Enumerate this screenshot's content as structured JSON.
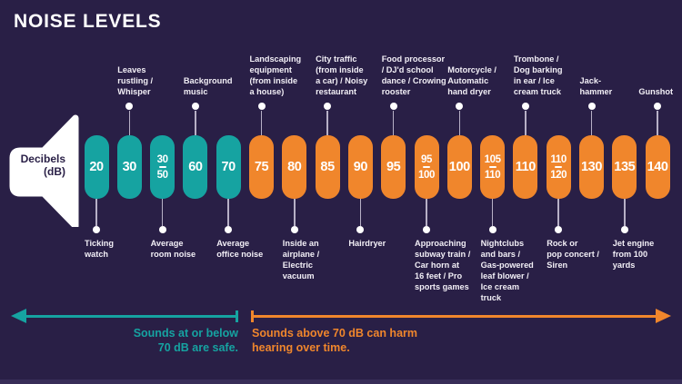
{
  "title": "NOISE LEVELS",
  "speaker": {
    "label": "Decibels\n(dB)"
  },
  "colors": {
    "background": "#291f46",
    "safe": "#16a3a1",
    "harm": "#f0862c",
    "text": "#ffffff",
    "connector": "#b7b0c6"
  },
  "pills": [
    {
      "values": [
        "20"
      ],
      "zone": "safe",
      "label_below": "Ticking\nwatch"
    },
    {
      "values": [
        "30"
      ],
      "zone": "safe",
      "label_above": "Leaves\nrustling /\nWhisper"
    },
    {
      "values": [
        "30",
        "50"
      ],
      "zone": "safe",
      "label_below": "Average\nroom noise"
    },
    {
      "values": [
        "60"
      ],
      "zone": "safe",
      "label_above": "Background\nmusic"
    },
    {
      "values": [
        "70"
      ],
      "zone": "safe",
      "label_below": "Average\noffice noise"
    },
    {
      "values": [
        "75"
      ],
      "zone": "harm",
      "label_above": "Landscaping\nequipment\n(from inside\na house)"
    },
    {
      "values": [
        "80"
      ],
      "zone": "harm",
      "label_below": "Inside an\nairplane /\nElectric\nvacuum"
    },
    {
      "values": [
        "85"
      ],
      "zone": "harm",
      "label_above": "City traffic\n(from inside\na car) / Noisy\nrestaurant"
    },
    {
      "values": [
        "90"
      ],
      "zone": "harm",
      "label_below": "Hairdryer"
    },
    {
      "values": [
        "95"
      ],
      "zone": "harm",
      "label_above": "Food processor\n/ DJ'd school\ndance / Crowing\nrooster"
    },
    {
      "values": [
        "95",
        "100"
      ],
      "zone": "harm",
      "label_below": "Approaching\nsubway train /\nCar horn at\n16 feet / Pro\nsports games"
    },
    {
      "values": [
        "100"
      ],
      "zone": "harm",
      "label_above": "Motorcycle /\nAutomatic\nhand dryer"
    },
    {
      "values": [
        "105",
        "110"
      ],
      "zone": "harm",
      "label_below": "Nightclubs\nand bars /\nGas-powered\nleaf blower /\nIce cream\ntruck"
    },
    {
      "values": [
        "110"
      ],
      "zone": "harm",
      "label_above": "Trombone /\nDog barking\nin ear / Ice\ncream truck"
    },
    {
      "values": [
        "110",
        "120"
      ],
      "zone": "harm",
      "label_below": "Rock or\npop concert /\nSiren"
    },
    {
      "values": [
        "130"
      ],
      "zone": "harm",
      "label_above": "Jack-\nhammer"
    },
    {
      "values": [
        "135"
      ],
      "zone": "harm",
      "label_below": "Jet engine\nfrom 100\nyards"
    },
    {
      "values": [
        "140"
      ],
      "zone": "harm",
      "label_above": "Gunshot"
    }
  ],
  "footer": {
    "safe_note": "Sounds at or below\n70 dB are safe.",
    "harm_note": "Sounds above 70 dB can harm\nhearing over time."
  }
}
